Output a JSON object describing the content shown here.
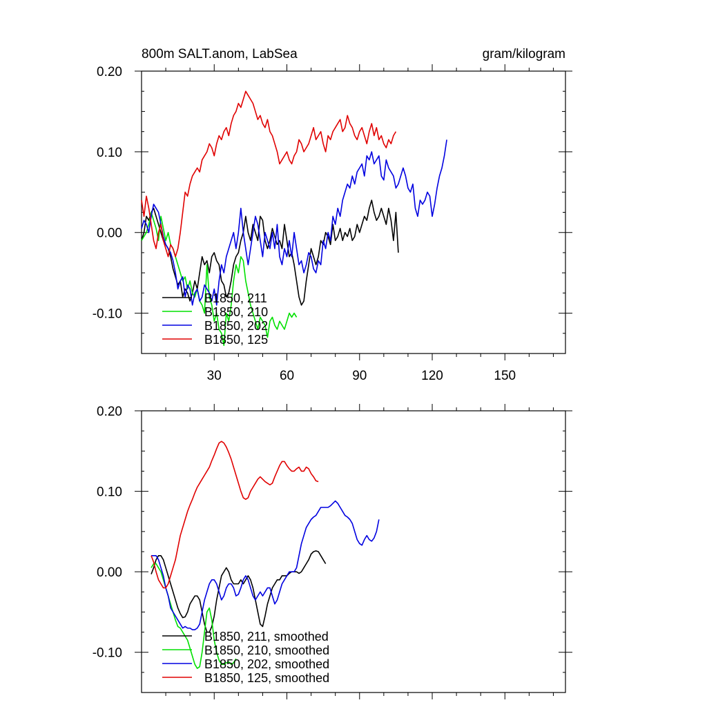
{
  "header": {
    "title": "800m SALT.anom, LabSea",
    "units": "gram/kilogram"
  },
  "colors": {
    "B1850, 211": "#000000",
    "B1850, 210": "#00e000",
    "B1850, 202": "#0000e0",
    "B1850, 125": "#e00000"
  },
  "chart_data": [
    {
      "type": "line",
      "title": "800m SALT.anom, LabSea",
      "units": "gram/kilogram",
      "xlabel": "",
      "ylabel": "",
      "xlim": [
        0,
        175
      ],
      "ylim": [
        -0.15,
        0.2
      ],
      "xticks": [
        30,
        60,
        90,
        120,
        150
      ],
      "xtick_labels": [
        "30",
        "60",
        "90",
        "120",
        "150"
      ],
      "yticks": [
        -0.1,
        0.0,
        0.1,
        0.2
      ],
      "ytick_labels": [
        "-0.10",
        "0.00",
        "0.10",
        "0.20"
      ],
      "legend_position": "bottom-left",
      "grid": false,
      "series": [
        {
          "name": "B1850, 211",
          "x_start": 0,
          "values": [
            -0.01,
            0.0,
            0.02,
            0.015,
            0.025,
            0.03,
            0.02,
            0.01,
            0.0,
            -0.01,
            -0.015,
            -0.02,
            -0.03,
            -0.045,
            -0.055,
            -0.065,
            -0.06,
            -0.08,
            -0.07,
            -0.075,
            -0.085,
            -0.075,
            -0.06,
            -0.07,
            -0.05,
            -0.03,
            -0.04,
            -0.035,
            -0.05,
            -0.03,
            -0.025,
            -0.035,
            -0.04,
            -0.06,
            -0.065,
            -0.08,
            -0.075,
            -0.06,
            -0.04,
            -0.03,
            -0.025,
            -0.01,
            0.0,
            0.02,
            0.0,
            -0.01,
            0.01,
            0.0,
            -0.01,
            0.02,
            0.015,
            -0.01,
            -0.02,
            -0.01,
            0.005,
            -0.005,
            -0.015,
            -0.01,
            -0.02,
            0.01,
            -0.01,
            -0.03,
            -0.025,
            -0.04,
            -0.06,
            -0.08,
            -0.09,
            -0.085,
            -0.06,
            -0.04,
            -0.02,
            -0.03,
            -0.04,
            -0.03,
            -0.01,
            -0.015,
            0.0,
            -0.005,
            -0.015,
            0.01,
            -0.01,
            -0.005,
            0.005,
            -0.01,
            0.0,
            -0.005,
            0.005,
            -0.01,
            -0.005,
            0.01,
            0.0,
            0.01,
            0.02,
            0.015,
            0.03,
            0.04,
            0.025,
            0.015,
            0.02,
            0.03,
            0.02,
            0.01,
            0.03,
            0.015,
            -0.01,
            0.025,
            -0.025
          ]
        },
        {
          "name": "B1850, 210",
          "x_start": 0,
          "values": [
            -0.01,
            -0.005,
            0.0,
            0.01,
            0.025,
            0.015,
            0.005,
            -0.01,
            0.02,
            0.005,
            -0.01,
            0.0,
            -0.015,
            -0.02,
            -0.03,
            -0.04,
            -0.05,
            -0.06,
            -0.055,
            -0.07,
            -0.06,
            -0.075,
            -0.08,
            -0.07,
            -0.085,
            -0.09,
            -0.1,
            -0.04,
            -0.08,
            -0.09,
            -0.11,
            -0.1,
            -0.12,
            -0.125,
            -0.14,
            -0.1,
            -0.11,
            -0.09,
            -0.06,
            -0.04,
            -0.05,
            -0.03,
            -0.035,
            -0.06,
            -0.075,
            -0.09,
            -0.1,
            -0.11,
            -0.12,
            -0.105,
            -0.11,
            -0.115,
            -0.13,
            -0.11,
            -0.105,
            -0.115,
            -0.12,
            -0.11,
            -0.115,
            -0.12,
            -0.11,
            -0.1,
            -0.105,
            -0.1,
            -0.105
          ]
        },
        {
          "name": "B1850, 202",
          "x_start": 0,
          "values": [
            0.005,
            0.015,
            0.01,
            0.0,
            0.02,
            0.035,
            0.03,
            0.025,
            0.01,
            -0.005,
            -0.015,
            -0.02,
            -0.025,
            -0.035,
            -0.05,
            -0.07,
            -0.06,
            -0.055,
            -0.08,
            -0.065,
            -0.07,
            -0.09,
            -0.075,
            -0.07,
            -0.085,
            -0.08,
            -0.065,
            -0.07,
            -0.075,
            -0.085,
            -0.07,
            -0.09,
            -0.06,
            -0.04,
            -0.05,
            -0.03,
            -0.02,
            -0.01,
            0.0,
            -0.02,
            0.0,
            0.03,
            0.0,
            -0.02,
            -0.04,
            -0.02,
            0.0,
            0.02,
            0.01,
            -0.01,
            -0.03,
            0.0,
            -0.01,
            -0.02,
            0.0,
            -0.02,
            0.01,
            -0.03,
            -0.04,
            -0.02,
            -0.03,
            -0.01,
            -0.03,
            0.0,
            -0.02,
            -0.04,
            -0.035,
            -0.05,
            -0.04,
            -0.025,
            -0.03,
            -0.045,
            -0.05,
            -0.035,
            -0.04,
            -0.01,
            -0.02,
            0.0,
            -0.01,
            0.02,
            0.01,
            0.03,
            0.02,
            0.04,
            0.05,
            0.06,
            0.055,
            0.07,
            0.06,
            0.075,
            0.08,
            0.085,
            0.07,
            0.095,
            0.09,
            0.1,
            0.085,
            0.09,
            0.095,
            0.07,
            0.065,
            0.09,
            0.08,
            0.075,
            0.07,
            0.055,
            0.06,
            0.07,
            0.08,
            0.07,
            0.055,
            0.05,
            0.06,
            0.03,
            0.02,
            0.04,
            0.035,
            0.04,
            0.05,
            0.045,
            0.02,
            0.035,
            0.055,
            0.07,
            0.08,
            0.095,
            0.115
          ]
        },
        {
          "name": "B1850, 125",
          "x_start": 0,
          "values": [
            0.04,
            0.02,
            0.045,
            0.03,
            0.01,
            -0.01,
            -0.02,
            0.0,
            0.01,
            -0.01,
            -0.02,
            -0.03,
            -0.015,
            -0.02,
            -0.03,
            -0.02,
            0.0,
            0.025,
            0.05,
            0.045,
            0.06,
            0.07,
            0.075,
            0.08,
            0.075,
            0.09,
            0.095,
            0.1,
            0.11,
            0.105,
            0.095,
            0.11,
            0.12,
            0.115,
            0.125,
            0.13,
            0.12,
            0.135,
            0.145,
            0.15,
            0.16,
            0.155,
            0.165,
            0.175,
            0.17,
            0.165,
            0.16,
            0.15,
            0.14,
            0.145,
            0.135,
            0.13,
            0.14,
            0.125,
            0.12,
            0.11,
            0.1,
            0.085,
            0.09,
            0.095,
            0.1,
            0.09,
            0.085,
            0.095,
            0.1,
            0.115,
            0.11,
            0.1,
            0.105,
            0.11,
            0.12,
            0.13,
            0.115,
            0.12,
            0.125,
            0.11,
            0.1,
            0.12,
            0.115,
            0.125,
            0.13,
            0.135,
            0.14,
            0.125,
            0.13,
            0.145,
            0.135,
            0.13,
            0.12,
            0.115,
            0.125,
            0.13,
            0.12,
            0.11,
            0.125,
            0.135,
            0.12,
            0.13,
            0.115,
            0.12,
            0.11,
            0.105,
            0.115,
            0.11,
            0.12,
            0.125
          ]
        }
      ]
    },
    {
      "type": "line",
      "title": "",
      "xlabel": "",
      "ylabel": "",
      "xlim": [
        0,
        175
      ],
      "ylim": [
        -0.15,
        0.2
      ],
      "xticks": [
        30,
        60,
        90,
        120,
        150
      ],
      "xtick_labels": [],
      "yticks": [
        -0.1,
        0.0,
        0.1,
        0.2
      ],
      "ytick_labels": [
        "-0.10",
        "0.00",
        "0.10",
        "0.20"
      ],
      "legend_position": "bottom-left",
      "grid": false,
      "series": [
        {
          "name": "B1850, 211, smoothed",
          "x_start": 4,
          "values": [
            -0.003,
            0.005,
            0.015,
            0.02,
            0.02,
            0.015,
            0.005,
            -0.005,
            -0.015,
            -0.025,
            -0.035,
            -0.045,
            -0.052,
            -0.057,
            -0.056,
            -0.05,
            -0.04,
            -0.035,
            -0.03,
            -0.03,
            -0.035,
            -0.05,
            -0.065,
            -0.075,
            -0.075,
            -0.068,
            -0.055,
            -0.035,
            -0.02,
            -0.005,
            0.0,
            0.005,
            0.0,
            -0.01,
            -0.015,
            -0.015,
            -0.015,
            -0.01,
            -0.015,
            -0.01,
            -0.005,
            -0.01,
            -0.02,
            -0.035,
            -0.05,
            -0.065,
            -0.068,
            -0.055,
            -0.04,
            -0.03,
            -0.02,
            -0.015,
            -0.01,
            -0.01,
            -0.005,
            -0.005,
            -0.005,
            -0.002,
            0.0,
            0.0,
            0.0,
            -0.002,
            0.0,
            0.005,
            0.01,
            0.015,
            0.022,
            0.025,
            0.026,
            0.025,
            0.02,
            0.015,
            0.01
          ]
        },
        {
          "name": "B1850, 210, smoothed",
          "x_start": 4,
          "values": [
            0.005,
            0.01,
            0.01,
            0.005,
            0.0,
            -0.01,
            -0.02,
            -0.03,
            -0.04,
            -0.05,
            -0.06,
            -0.068,
            -0.07,
            -0.075,
            -0.08,
            -0.085,
            -0.095,
            -0.105,
            -0.115,
            -0.12,
            -0.118,
            -0.1,
            -0.075,
            -0.05,
            -0.045,
            -0.06,
            -0.085,
            -0.1,
            -0.11,
            -0.115,
            -0.115,
            -0.113,
            -0.112,
            -0.115,
            -0.113,
            -0.108
          ]
        },
        {
          "name": "B1850, 202, smoothed",
          "x_start": 4,
          "values": [
            0.02,
            0.02,
            0.02,
            0.015,
            0.005,
            -0.005,
            -0.02,
            -0.03,
            -0.045,
            -0.05,
            -0.055,
            -0.06,
            -0.065,
            -0.07,
            -0.068,
            -0.07,
            -0.07,
            -0.072,
            -0.072,
            -0.07,
            -0.065,
            -0.05,
            -0.035,
            -0.025,
            -0.015,
            -0.01,
            -0.01,
            -0.015,
            -0.025,
            -0.035,
            -0.03,
            -0.02,
            -0.015,
            -0.015,
            -0.02,
            -0.03,
            -0.028,
            -0.02,
            -0.01,
            -0.005,
            -0.01,
            -0.02,
            -0.03,
            -0.035,
            -0.03,
            -0.025,
            -0.03,
            -0.025,
            -0.02,
            -0.02,
            -0.03,
            -0.04,
            -0.035,
            -0.025,
            -0.015,
            -0.01,
            -0.005,
            0.0,
            0.0,
            0.0,
            0.005,
            0.02,
            0.035,
            0.045,
            0.055,
            0.06,
            0.065,
            0.068,
            0.07,
            0.075,
            0.08,
            0.08,
            0.08,
            0.08,
            0.082,
            0.085,
            0.088,
            0.085,
            0.08,
            0.075,
            0.07,
            0.068,
            0.065,
            0.06,
            0.05,
            0.04,
            0.035,
            0.033,
            0.04,
            0.045,
            0.04,
            0.038,
            0.042,
            0.05,
            0.065
          ]
        },
        {
          "name": "B1850, 125, smoothed",
          "x_start": 4,
          "values": [
            0.02,
            0.012,
            0.0,
            -0.01,
            -0.015,
            -0.02,
            -0.02,
            -0.015,
            -0.005,
            0.005,
            0.015,
            0.03,
            0.045,
            0.055,
            0.065,
            0.075,
            0.083,
            0.09,
            0.098,
            0.105,
            0.11,
            0.115,
            0.12,
            0.125,
            0.13,
            0.138,
            0.145,
            0.153,
            0.16,
            0.162,
            0.16,
            0.155,
            0.148,
            0.14,
            0.13,
            0.12,
            0.11,
            0.1,
            0.092,
            0.09,
            0.092,
            0.1,
            0.105,
            0.11,
            0.115,
            0.118,
            0.115,
            0.112,
            0.11,
            0.108,
            0.11,
            0.118,
            0.125,
            0.132,
            0.137,
            0.137,
            0.132,
            0.128,
            0.125,
            0.125,
            0.128,
            0.13,
            0.125,
            0.125,
            0.13,
            0.128,
            0.122,
            0.118,
            0.113,
            0.112
          ]
        }
      ]
    }
  ]
}
